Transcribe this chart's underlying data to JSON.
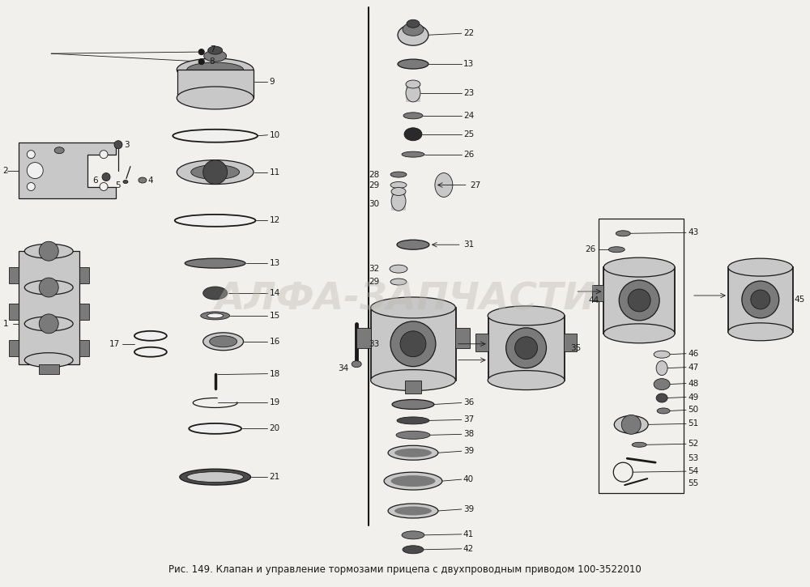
{
  "title": "Рис. 149. Клапан и управление тормозами прицепа с двухпроводным приводом 100-3522010",
  "bg_color": "#f2f0ed",
  "fig_width": 10.0,
  "fig_height": 7.25,
  "dpi": 100,
  "watermark": "АЛФА-ЗАПЧАСТИ",
  "watermark_color": "#bbb8b0",
  "watermark_alpha": 0.38,
  "watermark_fontsize": 34,
  "title_fontsize": 8.5,
  "label_fontsize": 7.5,
  "lc": "#1a1a1a",
  "lw_thin": 0.6,
  "lw_med": 0.9,
  "lw_thick": 1.3,
  "fc_dark": "#4a4a4a",
  "fc_mid": "#7a7a7a",
  "fc_light": "#c8c8c8",
  "fc_white": "#f0f0f0",
  "fc_rubber": "#2a2a2a"
}
